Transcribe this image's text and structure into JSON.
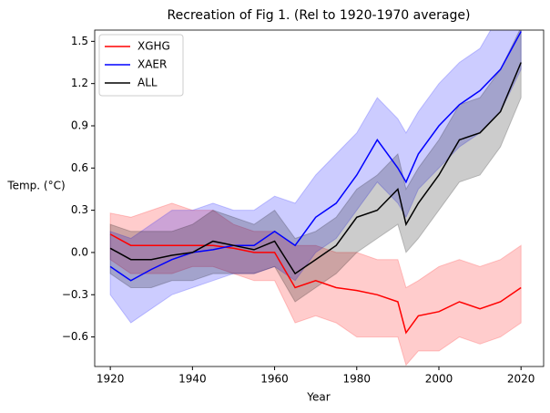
{
  "chart_data": {
    "type": "line",
    "title": "Recreation of Fig 1. (Rel to 1920-1970 average)",
    "xlabel": "Year",
    "ylabel": "Temp. (°C)",
    "x": [
      1920,
      1925,
      1930,
      1935,
      1940,
      1945,
      1950,
      1955,
      1960,
      1965,
      1970,
      1975,
      1980,
      1985,
      1990,
      1992,
      1995,
      2000,
      2005,
      2010,
      2015,
      2020
    ],
    "series": [
      {
        "name": "XGHG",
        "color": "#ff0000",
        "values": [
          0.13,
          0.05,
          0.05,
          0.05,
          0.05,
          0.05,
          0.03,
          0.0,
          0.0,
          -0.25,
          -0.2,
          -0.25,
          -0.27,
          -0.3,
          -0.35,
          -0.57,
          -0.45,
          -0.42,
          -0.35,
          -0.4,
          -0.35,
          -0.25
        ],
        "lower": [
          -0.05,
          -0.15,
          -0.15,
          -0.15,
          -0.1,
          -0.1,
          -0.15,
          -0.2,
          -0.2,
          -0.5,
          -0.45,
          -0.5,
          -0.6,
          -0.6,
          -0.6,
          -0.8,
          -0.7,
          -0.7,
          -0.6,
          -0.65,
          -0.6,
          -0.5
        ],
        "upper": [
          0.28,
          0.25,
          0.3,
          0.35,
          0.3,
          0.3,
          0.2,
          0.15,
          0.15,
          0.05,
          0.05,
          0.0,
          0.0,
          -0.05,
          -0.05,
          -0.25,
          -0.2,
          -0.1,
          -0.05,
          -0.1,
          -0.05,
          0.05
        ]
      },
      {
        "name": "XAER",
        "color": "#0000ff",
        "values": [
          -0.1,
          -0.2,
          -0.12,
          -0.05,
          0.0,
          0.02,
          0.05,
          0.05,
          0.15,
          0.05,
          0.25,
          0.35,
          0.55,
          0.8,
          0.6,
          0.5,
          0.7,
          0.9,
          1.05,
          1.15,
          1.3,
          1.57
        ],
        "lower": [
          -0.3,
          -0.5,
          -0.4,
          -0.3,
          -0.25,
          -0.2,
          -0.15,
          -0.15,
          -0.1,
          -0.2,
          0.0,
          0.1,
          0.3,
          0.5,
          0.35,
          0.25,
          0.45,
          0.6,
          0.75,
          0.85,
          1.0,
          1.3
        ],
        "upper": [
          0.15,
          0.1,
          0.2,
          0.3,
          0.3,
          0.35,
          0.3,
          0.3,
          0.4,
          0.35,
          0.55,
          0.7,
          0.85,
          1.1,
          0.95,
          0.85,
          1.0,
          1.2,
          1.35,
          1.45,
          1.7,
          1.7
        ]
      },
      {
        "name": "ALL",
        "color": "#000000",
        "values": [
          0.03,
          -0.05,
          -0.05,
          -0.02,
          0.0,
          0.08,
          0.05,
          0.02,
          0.08,
          -0.15,
          -0.05,
          0.05,
          0.25,
          0.3,
          0.45,
          0.2,
          0.35,
          0.55,
          0.8,
          0.85,
          1.0,
          1.35
        ],
        "lower": [
          -0.15,
          -0.25,
          -0.25,
          -0.2,
          -0.2,
          -0.15,
          -0.15,
          -0.15,
          -0.1,
          -0.35,
          -0.25,
          -0.15,
          0.0,
          0.1,
          0.2,
          0.0,
          0.1,
          0.3,
          0.5,
          0.55,
          0.75,
          1.1
        ],
        "upper": [
          0.2,
          0.15,
          0.15,
          0.15,
          0.2,
          0.3,
          0.25,
          0.2,
          0.3,
          0.1,
          0.15,
          0.25,
          0.45,
          0.55,
          0.7,
          0.45,
          0.6,
          0.8,
          1.05,
          1.1,
          1.3,
          1.6
        ]
      }
    ],
    "xlim": [
      1916.2,
      2025.5
    ],
    "ylim": [
      -0.81,
      1.58
    ],
    "xticks": [
      1920,
      1940,
      1960,
      1980,
      2000,
      2020
    ],
    "yticks": [
      {
        "value": -0.6,
        "label": "−0.6"
      },
      {
        "value": -0.3,
        "label": "−0.3"
      },
      {
        "value": 0,
        "label": "0.0"
      },
      0.3,
      0.6,
      0.9,
      1.2,
      1.5
    ],
    "band_opacity": 0.2,
    "legend": "upper left",
    "grid": false
  }
}
